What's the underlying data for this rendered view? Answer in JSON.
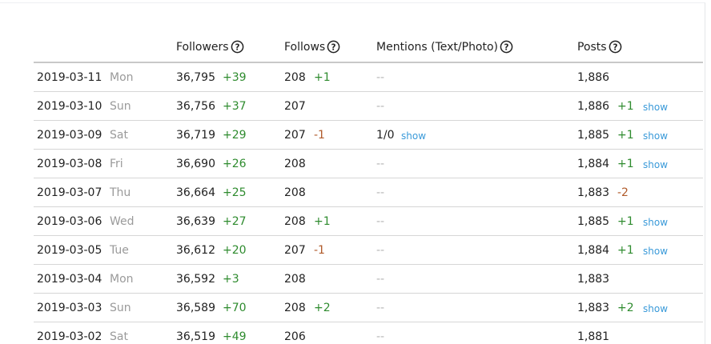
{
  "table": {
    "headers": {
      "followers": "Followers",
      "follows": "Follows",
      "mentions": "Mentions (Text/Photo)",
      "posts": "Posts"
    },
    "rows": [
      {
        "date": "2019-03-11",
        "day": "Mon",
        "followers": "36,795",
        "followers_change": "+39",
        "follows": "208",
        "follows_change": "+1",
        "mentions": "--",
        "posts": "1,886"
      },
      {
        "date": "2019-03-10",
        "day": "Sun",
        "followers": "36,756",
        "followers_change": "+37",
        "follows": "207",
        "mentions": "--",
        "posts": "1,886",
        "posts_change": "+1",
        "posts_link": "show"
      },
      {
        "date": "2019-03-09",
        "day": "Sat",
        "followers": "36,719",
        "followers_change": "+29",
        "follows": "207",
        "follows_change": "-1",
        "mentions": "1/0",
        "mentions_link": "show",
        "posts": "1,885",
        "posts_change": "+1",
        "posts_link": "show"
      },
      {
        "date": "2019-03-08",
        "day": "Fri",
        "followers": "36,690",
        "followers_change": "+26",
        "follows": "208",
        "mentions": "--",
        "posts": "1,884",
        "posts_change": "+1",
        "posts_link": "show"
      },
      {
        "date": "2019-03-07",
        "day": "Thu",
        "followers": "36,664",
        "followers_change": "+25",
        "follows": "208",
        "mentions": "--",
        "posts": "1,883",
        "posts_change": "-2"
      },
      {
        "date": "2019-03-06",
        "day": "Wed",
        "followers": "36,639",
        "followers_change": "+27",
        "follows": "208",
        "follows_change": "+1",
        "mentions": "--",
        "posts": "1,885",
        "posts_change": "+1",
        "posts_link": "show"
      },
      {
        "date": "2019-03-05",
        "day": "Tue",
        "followers": "36,612",
        "followers_change": "+20",
        "follows": "207",
        "follows_change": "-1",
        "mentions": "--",
        "posts": "1,884",
        "posts_change": "+1",
        "posts_link": "show"
      },
      {
        "date": "2019-03-04",
        "day": "Mon",
        "followers": "36,592",
        "followers_change": "+3",
        "follows": "208",
        "mentions": "--",
        "posts": "1,883"
      },
      {
        "date": "2019-03-03",
        "day": "Sun",
        "followers": "36,589",
        "followers_change": "+70",
        "follows": "208",
        "follows_change": "+2",
        "mentions": "--",
        "posts": "1,883",
        "posts_change": "+2",
        "posts_link": "show"
      },
      {
        "date": "2019-03-02",
        "day": "Sat",
        "followers": "36,519",
        "followers_change": "+49",
        "follows": "206",
        "mentions": "--",
        "posts": "1,881"
      }
    ]
  }
}
